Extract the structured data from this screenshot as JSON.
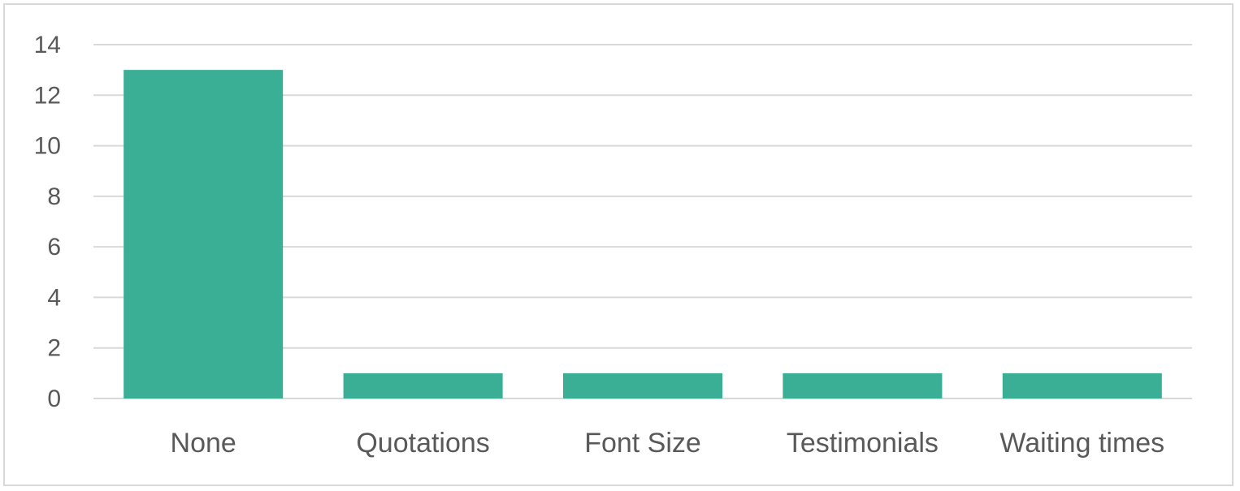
{
  "chart_data": {
    "type": "bar",
    "title": "",
    "xlabel": "",
    "ylabel": "",
    "categories": [
      "None",
      "Quotations",
      "Font Size",
      "Testimonials",
      "Waiting times"
    ],
    "values": [
      13,
      1,
      1,
      1,
      1
    ],
    "ylim": [
      0,
      14
    ],
    "yticks": [
      0,
      2,
      4,
      6,
      8,
      10,
      12,
      14
    ],
    "grid": true,
    "legend": "none",
    "colors": {
      "bar": "#3AAF96",
      "grid": "#d9d9d9",
      "text": "#595959",
      "border": "#d9d9d9"
    }
  }
}
